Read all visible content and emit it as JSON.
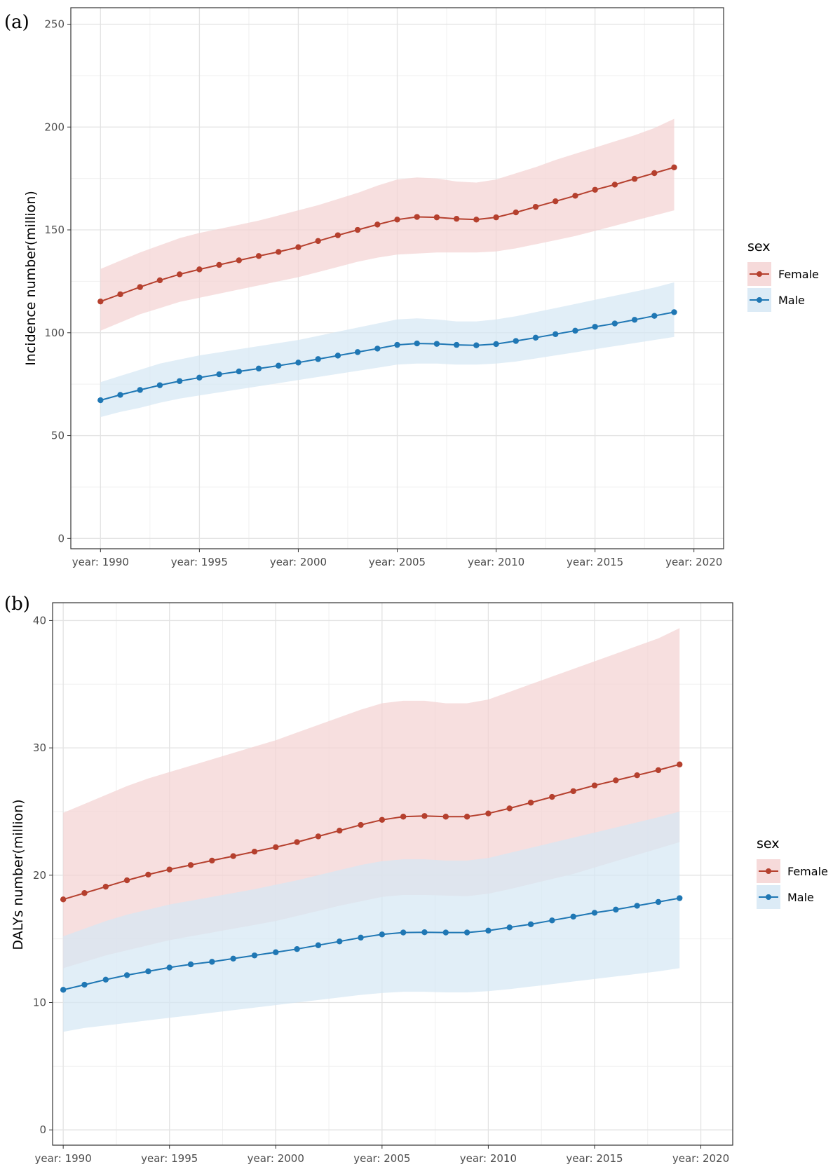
{
  "chart_data": [
    {
      "id": "a",
      "panel_label": "(a)",
      "type": "line",
      "ylabel": "Incidence number(million)",
      "xlabel": "",
      "xlim": [
        1988.5,
        2021.5
      ],
      "ylim": [
        -5,
        258
      ],
      "x_ticks": [
        {
          "value": 1990,
          "label": "year: 1990"
        },
        {
          "value": 1995,
          "label": "year: 1995"
        },
        {
          "value": 2000,
          "label": "year: 2000"
        },
        {
          "value": 2005,
          "label": "year: 2005"
        },
        {
          "value": 2010,
          "label": "year: 2010"
        },
        {
          "value": 2015,
          "label": "year: 2015"
        },
        {
          "value": 2020,
          "label": "year: 2020"
        }
      ],
      "y_ticks": [
        {
          "value": 0,
          "label": "0"
        },
        {
          "value": 50,
          "label": "50"
        },
        {
          "value": 100,
          "label": "100"
        },
        {
          "value": 150,
          "label": "150"
        },
        {
          "value": 200,
          "label": "200"
        },
        {
          "value": 250,
          "label": "250"
        }
      ],
      "grid": true,
      "legend": {
        "title": "sex",
        "position": "right"
      },
      "x": [
        1990,
        1991,
        1992,
        1993,
        1994,
        1995,
        1996,
        1997,
        1998,
        1999,
        2000,
        2001,
        2002,
        2003,
        2004,
        2005,
        2006,
        2007,
        2008,
        2009,
        2010,
        2011,
        2012,
        2013,
        2014,
        2015,
        2016,
        2017,
        2018,
        2019
      ],
      "series": [
        {
          "name": "Female",
          "color": "#b5402e",
          "ribbon_color": "#f4d3d3",
          "values": [
            115.2,
            118.7,
            122.2,
            125.5,
            128.4,
            130.8,
            133.0,
            135.2,
            137.3,
            139.3,
            141.6,
            144.6,
            147.4,
            150.0,
            152.6,
            155.0,
            156.3,
            156.1,
            155.4,
            155.0,
            156.1,
            158.5,
            161.2,
            163.9,
            166.6,
            169.5,
            172.0,
            174.8,
            177.6,
            180.4
          ],
          "lower": [
            101,
            105,
            109,
            112,
            115,
            117,
            119,
            121,
            123,
            125,
            127,
            129.5,
            132,
            134.5,
            136.5,
            138,
            138.5,
            139,
            139,
            139,
            139.5,
            141,
            143,
            145,
            147,
            149.5,
            152,
            154.5,
            157,
            159.5
          ],
          "upper": [
            131,
            135,
            139,
            142.5,
            146,
            148.5,
            150.5,
            152.5,
            154.5,
            157,
            159.5,
            162,
            165,
            168,
            171.5,
            174.5,
            175.5,
            175,
            173.5,
            173,
            174.5,
            177.5,
            180.5,
            184,
            187,
            190,
            193,
            196,
            199.5,
            204
          ]
        },
        {
          "name": "Male",
          "color": "#1f77b4",
          "ribbon_color": "#d6e8f4",
          "values": [
            67.2,
            69.8,
            72.2,
            74.5,
            76.5,
            78.2,
            79.8,
            81.2,
            82.6,
            84.0,
            85.5,
            87.2,
            88.9,
            90.6,
            92.3,
            94.1,
            94.8,
            94.6,
            94.1,
            93.9,
            94.5,
            96.0,
            97.6,
            99.3,
            101.0,
            102.9,
            104.5,
            106.3,
            108.2,
            110.0
          ],
          "lower": [
            59,
            61.5,
            63.5,
            66,
            68,
            69.5,
            71,
            72.5,
            74,
            75.5,
            77,
            78.5,
            80,
            81.5,
            83,
            84.5,
            85,
            85,
            84.5,
            84.5,
            85,
            86,
            87.5,
            89,
            90.5,
            92,
            93.5,
            95,
            96.5,
            98
          ],
          "upper": [
            76,
            79,
            82,
            85,
            87,
            89,
            90.5,
            92,
            93.5,
            95,
            96.5,
            98.5,
            100.5,
            102.5,
            104.5,
            106.5,
            107,
            106.5,
            105.5,
            105.5,
            106.5,
            108,
            110,
            112,
            114,
            116,
            118,
            120,
            122,
            124.5
          ]
        }
      ]
    },
    {
      "id": "b",
      "panel_label": "(b)",
      "type": "line",
      "ylabel": "DALYs number(million)",
      "xlabel": "",
      "xlim": [
        1989.5,
        2021.5
      ],
      "ylim": [
        -1.2,
        41.4
      ],
      "x_ticks": [
        {
          "value": 1990,
          "label": "year: 1990"
        },
        {
          "value": 1995,
          "label": "year: 1995"
        },
        {
          "value": 2000,
          "label": "year: 2000"
        },
        {
          "value": 2005,
          "label": "year: 2005"
        },
        {
          "value": 2010,
          "label": "year: 2010"
        },
        {
          "value": 2015,
          "label": "year: 2015"
        },
        {
          "value": 2020,
          "label": "year: 2020"
        }
      ],
      "y_ticks": [
        {
          "value": 0,
          "label": "0"
        },
        {
          "value": 10,
          "label": "10"
        },
        {
          "value": 20,
          "label": "20"
        },
        {
          "value": 30,
          "label": "30"
        },
        {
          "value": 40,
          "label": "40"
        }
      ],
      "grid": true,
      "legend": {
        "title": "sex",
        "position": "right"
      },
      "x": [
        1990,
        1991,
        1992,
        1993,
        1994,
        1995,
        1996,
        1997,
        1998,
        1999,
        2000,
        2001,
        2002,
        2003,
        2004,
        2005,
        2006,
        2007,
        2008,
        2009,
        2010,
        2011,
        2012,
        2013,
        2014,
        2015,
        2016,
        2017,
        2018,
        2019
      ],
      "series": [
        {
          "name": "Female",
          "color": "#b5402e",
          "ribbon_color": "#f4d3d3",
          "values": [
            18.1,
            18.6,
            19.1,
            19.6,
            20.05,
            20.45,
            20.8,
            21.15,
            21.5,
            21.85,
            22.2,
            22.6,
            23.05,
            23.5,
            23.95,
            24.35,
            24.6,
            24.65,
            24.6,
            24.6,
            24.85,
            25.25,
            25.7,
            26.15,
            26.6,
            27.05,
            27.45,
            27.85,
            28.25,
            28.7
          ],
          "lower": [
            12.7,
            13.2,
            13.7,
            14.1,
            14.5,
            14.9,
            15.2,
            15.5,
            15.8,
            16.1,
            16.4,
            16.8,
            17.2,
            17.6,
            17.95,
            18.3,
            18.45,
            18.45,
            18.4,
            18.35,
            18.55,
            18.9,
            19.3,
            19.7,
            20.1,
            20.6,
            21.1,
            21.6,
            22.1,
            22.6
          ],
          "upper": [
            24.9,
            25.6,
            26.3,
            27,
            27.6,
            28.1,
            28.6,
            29.1,
            29.6,
            30.1,
            30.6,
            31.2,
            31.8,
            32.4,
            33,
            33.5,
            33.7,
            33.7,
            33.5,
            33.5,
            33.8,
            34.4,
            35,
            35.6,
            36.2,
            36.8,
            37.4,
            38,
            38.6,
            39.4
          ]
        },
        {
          "name": "Male",
          "color": "#1f77b4",
          "ribbon_color": "#d6e8f4",
          "values": [
            11.0,
            11.4,
            11.8,
            12.15,
            12.45,
            12.75,
            13.0,
            13.2,
            13.45,
            13.7,
            13.95,
            14.2,
            14.5,
            14.8,
            15.1,
            15.35,
            15.5,
            15.52,
            15.5,
            15.5,
            15.65,
            15.9,
            16.15,
            16.45,
            16.75,
            17.05,
            17.3,
            17.6,
            17.9,
            18.2
          ],
          "lower": [
            7.7,
            8.0,
            8.2,
            8.4,
            8.6,
            8.8,
            9.0,
            9.2,
            9.4,
            9.6,
            9.8,
            10.0,
            10.2,
            10.4,
            10.6,
            10.75,
            10.85,
            10.85,
            10.8,
            10.8,
            10.9,
            11.05,
            11.25,
            11.45,
            11.65,
            11.85,
            12.05,
            12.25,
            12.45,
            12.7
          ],
          "upper": [
            15.2,
            15.8,
            16.4,
            16.9,
            17.3,
            17.7,
            18.0,
            18.3,
            18.6,
            18.9,
            19.25,
            19.6,
            20.0,
            20.4,
            20.8,
            21.1,
            21.25,
            21.25,
            21.15,
            21.15,
            21.35,
            21.75,
            22.15,
            22.55,
            22.95,
            23.35,
            23.75,
            24.15,
            24.55,
            25.0
          ]
        }
      ]
    }
  ]
}
